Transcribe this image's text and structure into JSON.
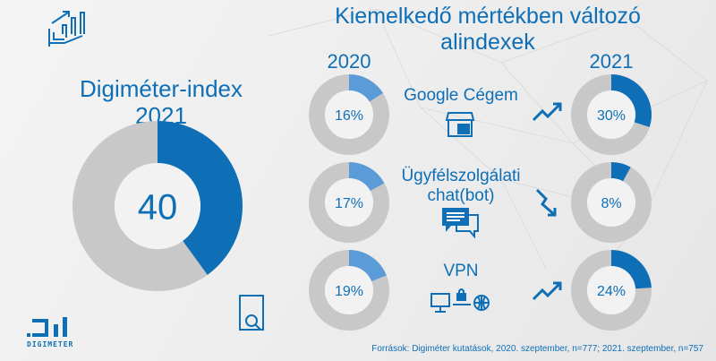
{
  "title_line1": "Kiemelkedő mértékben változó",
  "title_line2": "alindexek",
  "main_label_line1": "Digiméter-index",
  "main_label_line2": "2021",
  "logo_text": "DIGIMETER",
  "source": "Források: Digiméter kutatások, 2020. szeptember, n=777; 2021. szeptember, n=757",
  "colors": {
    "primary": "#0e6fb7",
    "light": "#5b9bd8",
    "track": "#c8c8c8"
  },
  "chart_data": {
    "type": "pie",
    "main": {
      "label": "Digiméter-index 2021",
      "value": 40,
      "max": 100,
      "display": "40"
    },
    "years": [
      "2020",
      "2021"
    ],
    "series": [
      {
        "name": "Google Cégem",
        "icon": "storefront-icon",
        "values": [
          16,
          30
        ],
        "labels": [
          "16%",
          "30%"
        ],
        "trend": "up"
      },
      {
        "name": "Ügyfélszolgálati chat(bot)",
        "name_line1": "Ügyfélszolgálati",
        "name_line2": "chat(bot)",
        "icon": "chat-icon",
        "values": [
          17,
          8
        ],
        "labels": [
          "17%",
          "8%"
        ],
        "trend": "down"
      },
      {
        "name": "VPN",
        "icon": "vpn-network-icon",
        "values": [
          19,
          24
        ],
        "labels": [
          "19%",
          "24%"
        ],
        "trend": "up"
      }
    ]
  }
}
